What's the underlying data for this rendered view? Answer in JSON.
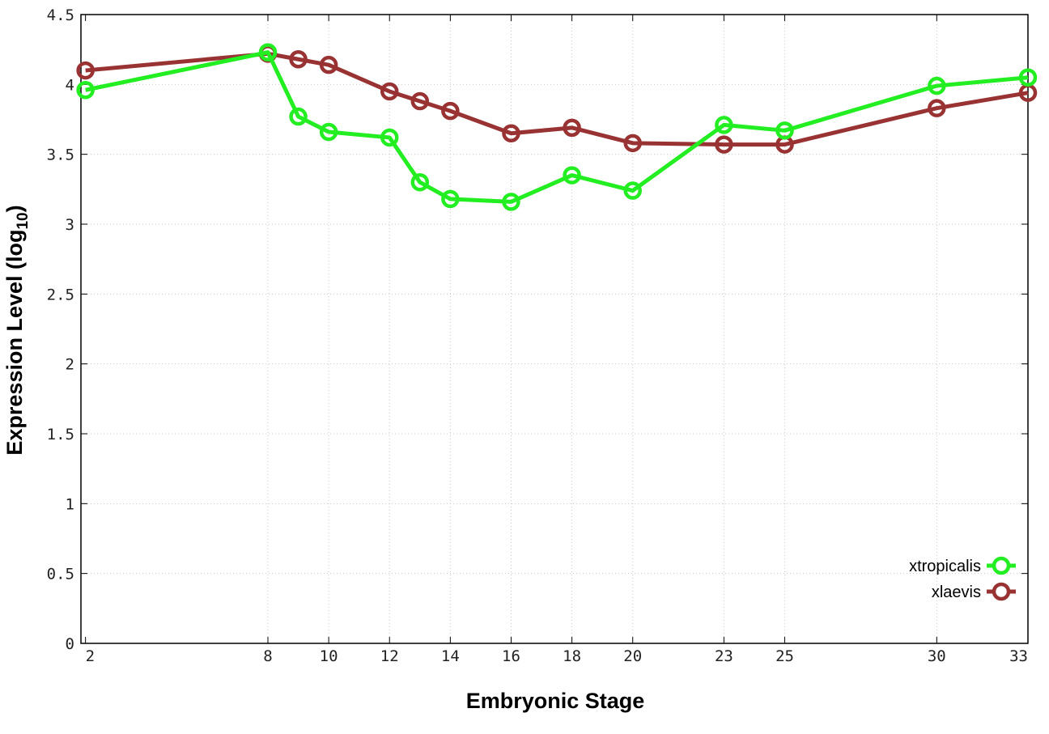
{
  "chart_data": {
    "type": "line",
    "xlabel": "Embryonic Stage",
    "ylabel_main": "Expression Level (log",
    "ylabel_sub": "10",
    "ylabel_close": ")",
    "x_ticks": [
      "2",
      "8",
      "10",
      "12",
      "14",
      "16",
      "18",
      "20",
      "23",
      "25",
      "30",
      "33"
    ],
    "y_ticks": [
      "0",
      "0.5",
      "1",
      "1.5",
      "2",
      "2.5",
      "3",
      "3.5",
      "4",
      "4.5"
    ],
    "ylim": [
      0,
      4.5
    ],
    "grid": true,
    "legend_position": "bottom-right",
    "series": [
      {
        "name": "xtropicalis",
        "color": "#22ee22",
        "points": [
          {
            "x": 2,
            "y": 3.96
          },
          {
            "x": 8,
            "y": 4.23
          },
          {
            "x": 9,
            "y": 3.77
          },
          {
            "x": 10,
            "y": 3.66
          },
          {
            "x": 12,
            "y": 3.62
          },
          {
            "x": 13,
            "y": 3.3
          },
          {
            "x": 14,
            "y": 3.18
          },
          {
            "x": 16,
            "y": 3.16
          },
          {
            "x": 18,
            "y": 3.35
          },
          {
            "x": 20,
            "y": 3.24
          },
          {
            "x": 23,
            "y": 3.71
          },
          {
            "x": 25,
            "y": 3.67
          },
          {
            "x": 30,
            "y": 3.99
          },
          {
            "x": 33,
            "y": 4.05
          }
        ]
      },
      {
        "name": "xlaevis",
        "color": "#993333",
        "points": [
          {
            "x": 2,
            "y": 4.1
          },
          {
            "x": 8,
            "y": 4.22
          },
          {
            "x": 9,
            "y": 4.18
          },
          {
            "x": 10,
            "y": 4.14
          },
          {
            "x": 12,
            "y": 3.95
          },
          {
            "x": 13,
            "y": 3.88
          },
          {
            "x": 14,
            "y": 3.81
          },
          {
            "x": 16,
            "y": 3.65
          },
          {
            "x": 18,
            "y": 3.69
          },
          {
            "x": 20,
            "y": 3.58
          },
          {
            "x": 23,
            "y": 3.57
          },
          {
            "x": 25,
            "y": 3.57
          },
          {
            "x": 30,
            "y": 3.83
          },
          {
            "x": 33,
            "y": 3.94
          }
        ]
      }
    ]
  }
}
